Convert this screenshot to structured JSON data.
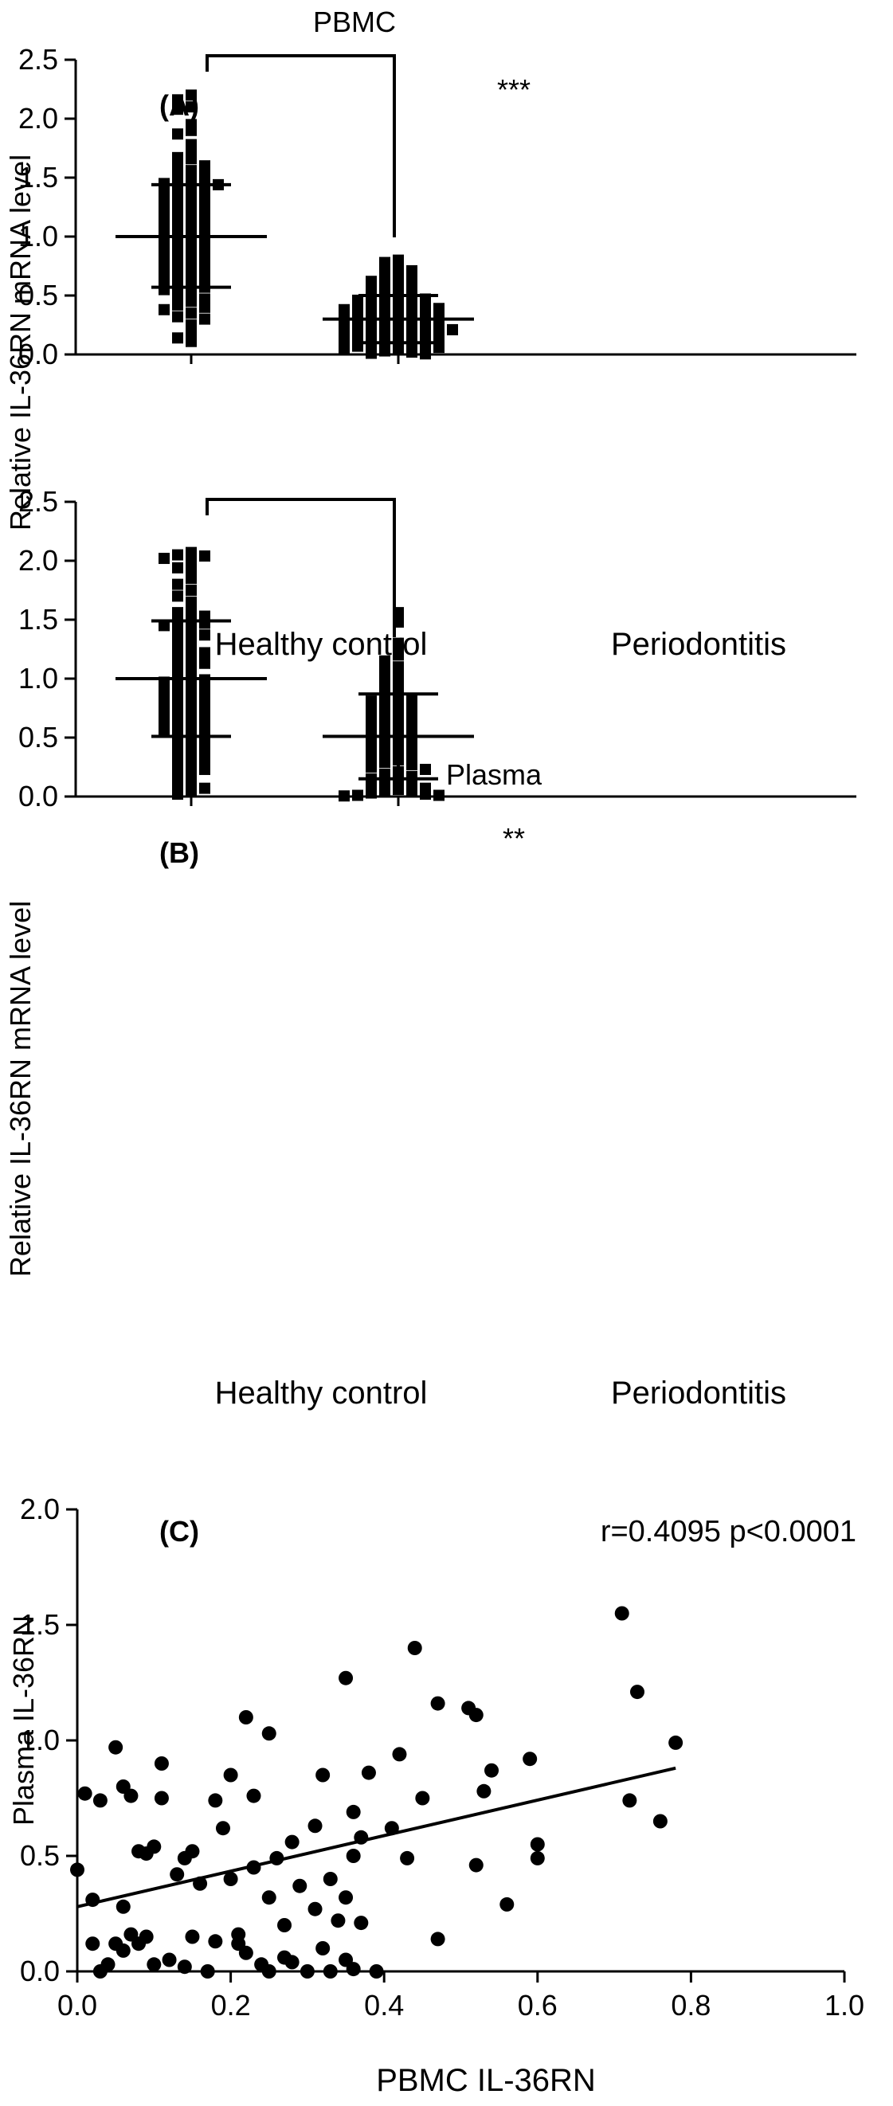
{
  "chart_data": [
    {
      "type": "scatter",
      "panel": "(A)",
      "title": "PBMC",
      "ylabel": "Relative IL-36RN mRNA level",
      "ylim": [
        0,
        2.5
      ],
      "yticks": [
        "0.0",
        "0.5",
        "1.0",
        "1.5",
        "2.0",
        "2.5"
      ],
      "categories": [
        "Healthy control",
        "Periodontitis"
      ],
      "significance": "***",
      "summary": [
        {
          "mean": 1.0,
          "sd_low": 0.57,
          "sd_high": 1.44
        },
        {
          "mean": 0.3,
          "sd_low": 0.1,
          "sd_high": 0.5
        }
      ],
      "series": [
        {
          "values": [
            2.2,
            2.16,
            2.1,
            2.08,
            1.95,
            1.9,
            1.87,
            1.78,
            1.75,
            1.67,
            1.66,
            1.62,
            1.6,
            1.56,
            1.53,
            1.51,
            1.5,
            1.49,
            1.47,
            1.45,
            1.44,
            1.42,
            1.4,
            1.38,
            1.36,
            1.34,
            1.32,
            1.3,
            1.28,
            1.25,
            1.23,
            1.21,
            1.19,
            1.17,
            1.15,
            1.13,
            1.11,
            1.09,
            1.07,
            1.05,
            1.03,
            1.01,
            0.99,
            0.97,
            0.95,
            0.93,
            0.91,
            0.89,
            0.87,
            0.85,
            0.83,
            0.81,
            0.79,
            0.77,
            0.75,
            0.73,
            0.71,
            0.69,
            0.67,
            0.65,
            0.63,
            0.61,
            0.59,
            0.57,
            0.55,
            0.53,
            0.5,
            0.47,
            0.45,
            0.42,
            0.4,
            0.38,
            0.35,
            0.32,
            0.3,
            0.25,
            0.2,
            0.14,
            0.11
          ]
        },
        {
          "values": [
            0.8,
            0.78,
            0.76,
            0.74,
            0.71,
            0.68,
            0.66,
            0.64,
            0.62,
            0.6,
            0.58,
            0.56,
            0.54,
            0.52,
            0.5,
            0.49,
            0.48,
            0.47,
            0.46,
            0.45,
            0.44,
            0.43,
            0.42,
            0.41,
            0.4,
            0.39,
            0.38,
            0.37,
            0.36,
            0.35,
            0.34,
            0.33,
            0.32,
            0.31,
            0.3,
            0.29,
            0.28,
            0.27,
            0.26,
            0.25,
            0.24,
            0.23,
            0.22,
            0.21,
            0.2,
            0.19,
            0.18,
            0.17,
            0.16,
            0.15,
            0.14,
            0.13,
            0.12,
            0.11,
            0.1,
            0.09,
            0.08,
            0.07,
            0.06,
            0.05,
            0.04,
            0.03,
            0.02,
            0.01,
            0.005
          ]
        }
      ]
    },
    {
      "type": "scatter",
      "panel": "(B)",
      "title": "Plasma",
      "ylabel": "Relative IL-36RN mRNA level",
      "ylim": [
        0,
        2.5
      ],
      "yticks": [
        "0.0",
        "0.5",
        "1.0",
        "1.5",
        "2.0",
        "2.5"
      ],
      "categories": [
        "Healthy control",
        "Periodontitis"
      ],
      "significance": "**",
      "summary": [
        {
          "mean": 1.0,
          "sd_low": 0.51,
          "sd_high": 1.49
        },
        {
          "mean": 0.51,
          "sd_low": 0.15,
          "sd_high": 0.87
        }
      ],
      "series": [
        {
          "values": [
            2.07,
            2.05,
            2.04,
            2.02,
            1.98,
            1.94,
            1.9,
            1.85,
            1.8,
            1.75,
            1.7,
            1.65,
            1.6,
            1.56,
            1.53,
            1.51,
            1.49,
            1.47,
            1.45,
            1.42,
            1.4,
            1.37,
            1.34,
            1.31,
            1.28,
            1.25,
            1.22,
            1.19,
            1.16,
            1.13,
            1.1,
            1.07,
            1.04,
            1.01,
            0.99,
            0.97,
            0.94,
            0.92,
            0.9,
            0.88,
            0.86,
            0.84,
            0.82,
            0.8,
            0.78,
            0.76,
            0.74,
            0.72,
            0.7,
            0.68,
            0.66,
            0.64,
            0.62,
            0.6,
            0.58,
            0.56,
            0.54,
            0.52,
            0.5,
            0.47,
            0.44,
            0.41,
            0.38,
            0.35,
            0.32,
            0.29,
            0.26,
            0.23,
            0.2,
            0.17,
            0.14,
            0.1,
            0.07,
            0.05,
            0.02
          ]
        },
        {
          "values": [
            1.56,
            1.48,
            1.3,
            1.25,
            1.2,
            1.15,
            1.1,
            1.06,
            1.02,
            0.98,
            0.94,
            0.9,
            0.87,
            0.85,
            0.83,
            0.81,
            0.79,
            0.77,
            0.75,
            0.73,
            0.71,
            0.69,
            0.67,
            0.65,
            0.63,
            0.61,
            0.59,
            0.57,
            0.55,
            0.53,
            0.51,
            0.49,
            0.47,
            0.45,
            0.43,
            0.41,
            0.39,
            0.37,
            0.35,
            0.33,
            0.31,
            0.29,
            0.27,
            0.25,
            0.23,
            0.21,
            0.19,
            0.17,
            0.15,
            0.13,
            0.11,
            0.09,
            0.08,
            0.07,
            0.06,
            0.05,
            0.04,
            0.03,
            0.02,
            0.01,
            0.01,
            0.005
          ]
        }
      ]
    },
    {
      "type": "scatter",
      "panel": "(C)",
      "xlabel": "PBMC IL-36RN",
      "ylabel": "Plasma IL-36RN",
      "xlim": [
        0,
        1.0
      ],
      "ylim": [
        0,
        2.0
      ],
      "xticks": [
        "0.0",
        "0.2",
        "0.4",
        "0.6",
        "0.8",
        "1.0"
      ],
      "yticks": [
        "0.0",
        "0.5",
        "1.0",
        "1.5",
        "2.0"
      ],
      "annotation": "r=0.4095 p<0.0001",
      "fit": {
        "x": [
          0.0,
          0.78
        ],
        "y": [
          0.28,
          0.88
        ]
      },
      "points": [
        [
          0.71,
          1.55
        ],
        [
          0.73,
          1.21
        ],
        [
          0.44,
          1.4
        ],
        [
          0.35,
          1.27
        ],
        [
          0.76,
          0.65
        ],
        [
          0.78,
          0.99
        ],
        [
          0.72,
          0.74
        ],
        [
          0.22,
          1.1
        ],
        [
          0.25,
          1.03
        ],
        [
          0.47,
          1.16
        ],
        [
          0.51,
          1.14
        ],
        [
          0.52,
          1.11
        ],
        [
          0.42,
          0.94
        ],
        [
          0.54,
          0.87
        ],
        [
          0.59,
          0.92
        ],
        [
          0.38,
          0.86
        ],
        [
          0.32,
          0.85
        ],
        [
          0.2,
          0.85
        ],
        [
          0.05,
          0.97
        ],
        [
          0.11,
          0.9
        ],
        [
          0.01,
          0.77
        ],
        [
          0.03,
          0.74
        ],
        [
          0.06,
          0.8
        ],
        [
          0.07,
          0.76
        ],
        [
          0.11,
          0.75
        ],
        [
          0.18,
          0.74
        ],
        [
          0.23,
          0.76
        ],
        [
          0.36,
          0.69
        ],
        [
          0.45,
          0.75
        ],
        [
          0.41,
          0.62
        ],
        [
          0.53,
          0.78
        ],
        [
          0.6,
          0.55
        ],
        [
          0.6,
          0.49
        ],
        [
          0.52,
          0.46
        ],
        [
          0.56,
          0.29
        ],
        [
          0.47,
          0.14
        ],
        [
          0.43,
          0.49
        ],
        [
          0.36,
          0.5
        ],
        [
          0.37,
          0.58
        ],
        [
          0.31,
          0.63
        ],
        [
          0.28,
          0.56
        ],
        [
          0.26,
          0.49
        ],
        [
          0.23,
          0.45
        ],
        [
          0.19,
          0.62
        ],
        [
          0.15,
          0.52
        ],
        [
          0.14,
          0.49
        ],
        [
          0.1,
          0.54
        ],
        [
          0.09,
          0.51
        ],
        [
          0.08,
          0.52
        ],
        [
          0.06,
          0.28
        ],
        [
          0.02,
          0.31
        ],
        [
          0.0,
          0.44
        ],
        [
          0.13,
          0.42
        ],
        [
          0.16,
          0.38
        ],
        [
          0.2,
          0.4
        ],
        [
          0.25,
          0.32
        ],
        [
          0.29,
          0.37
        ],
        [
          0.33,
          0.4
        ],
        [
          0.35,
          0.32
        ],
        [
          0.37,
          0.21
        ],
        [
          0.34,
          0.22
        ],
        [
          0.31,
          0.27
        ],
        [
          0.27,
          0.06
        ],
        [
          0.21,
          0.12
        ],
        [
          0.22,
          0.08
        ],
        [
          0.18,
          0.13
        ],
        [
          0.15,
          0.15
        ],
        [
          0.12,
          0.05
        ],
        [
          0.1,
          0.03
        ],
        [
          0.09,
          0.15
        ],
        [
          0.08,
          0.12
        ],
        [
          0.07,
          0.16
        ],
        [
          0.06,
          0.09
        ],
        [
          0.04,
          0.03
        ],
        [
          0.05,
          0.12
        ],
        [
          0.02,
          0.12
        ],
        [
          0.03,
          0.0
        ],
        [
          0.14,
          0.02
        ],
        [
          0.17,
          0.0
        ],
        [
          0.24,
          0.03
        ],
        [
          0.28,
          0.04
        ],
        [
          0.32,
          0.1
        ],
        [
          0.35,
          0.05
        ],
        [
          0.36,
          0.01
        ],
        [
          0.3,
          0.0
        ],
        [
          0.39,
          0.0
        ],
        [
          0.25,
          0.0
        ],
        [
          0.33,
          0.0
        ],
        [
          0.21,
          0.16
        ],
        [
          0.27,
          0.2
        ]
      ]
    }
  ]
}
